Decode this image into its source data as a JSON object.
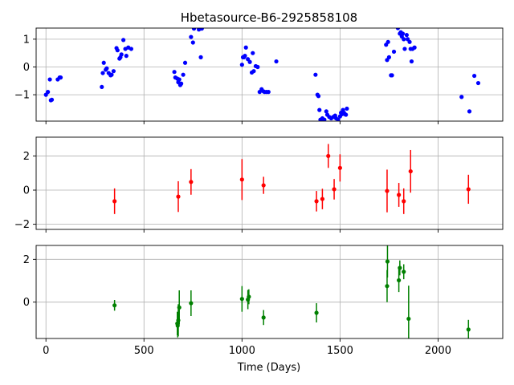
{
  "figure": {
    "title": "Hbetasource-B6-2925858108",
    "xlabel": "Time (Days)"
  },
  "chart_data": [
    {
      "type": "scatter",
      "title": "Hbetasource-B6-2925858108",
      "xlabel": "",
      "ylabel": "",
      "xlim": [
        -50,
        2330
      ],
      "ylim": [
        -1.95,
        1.4
      ],
      "xticks": [
        0,
        500,
        1000,
        1500,
        2000
      ],
      "yticks": [
        -1,
        0,
        1
      ],
      "ytick_labels": [
        "−1",
        "0",
        "1"
      ],
      "grid": true,
      "color": "#0000ff",
      "series": [
        {
          "x": [
            0,
            10,
            20,
            25,
            30,
            60,
            70,
            75,
            285,
            290,
            295,
            305,
            310,
            320,
            330,
            335,
            345,
            360,
            365,
            375,
            380,
            385,
            395,
            405,
            410,
            420,
            435,
            655,
            660,
            670,
            675,
            680,
            685,
            690,
            700,
            710,
            740,
            750,
            755,
            780,
            790,
            795,
            1000,
            1005,
            1010,
            1015,
            1020,
            1030,
            1040,
            1050,
            1055,
            1060,
            1070,
            1080,
            1090,
            1100,
            1110,
            1115,
            1125,
            1135,
            1175,
            1375,
            1385,
            1390,
            1395,
            1400,
            1405,
            1410,
            1415,
            1420,
            1430,
            1435,
            1445,
            1455,
            1465,
            1475,
            1480,
            1490,
            1500,
            1505,
            1510,
            1515,
            1520,
            1525,
            1530,
            1535,
            1735,
            1740,
            1745,
            1750,
            1760,
            1765,
            1775,
            1795,
            1805,
            1810,
            1815,
            1820,
            1825,
            1830,
            1840,
            1845,
            1855,
            1860,
            1865,
            1870,
            1880,
            2120,
            2160,
            2185,
            2205
          ],
          "y": [
            -1.0,
            -0.9,
            -0.45,
            -1.2,
            -1.18,
            -0.45,
            -0.38,
            -0.38,
            -0.72,
            -0.22,
            0.15,
            -0.1,
            -0.05,
            -0.22,
            -0.3,
            -0.28,
            -0.15,
            0.68,
            0.6,
            0.3,
            0.35,
            0.45,
            0.97,
            0.65,
            0.4,
            0.7,
            0.65,
            -0.18,
            -0.38,
            -0.42,
            -0.55,
            -0.45,
            -0.65,
            -0.6,
            -0.28,
            0.15,
            1.08,
            0.88,
            1.38,
            1.35,
            0.35,
            1.38,
            0.08,
            0.35,
            0.35,
            0.4,
            0.7,
            0.28,
            0.18,
            -0.2,
            0.5,
            -0.15,
            0.03,
            0.0,
            -0.9,
            -0.8,
            -0.88,
            -0.9,
            -0.9,
            -0.9,
            0.2,
            -0.28,
            -1.0,
            -1.05,
            -1.55,
            -1.9,
            -1.9,
            -1.85,
            -1.95,
            -1.9,
            -1.6,
            -1.72,
            -1.8,
            -1.85,
            -1.8,
            -1.75,
            -1.85,
            -1.9,
            -1.78,
            -1.65,
            -1.7,
            -1.55,
            -1.65,
            -1.7,
            -1.72,
            -1.5,
            0.8,
            0.25,
            0.9,
            0.35,
            -0.3,
            -0.3,
            0.55,
            1.4,
            1.2,
            1.25,
            1.1,
            1.2,
            1.0,
            0.65,
            1.15,
            1.0,
            0.9,
            0.65,
            0.2,
            0.65,
            0.7,
            -1.08,
            -1.6,
            -0.32,
            -0.58
          ]
        }
      ]
    },
    {
      "type": "scatter",
      "xlabel": "",
      "ylabel": "",
      "xlim": [
        -50,
        2330
      ],
      "ylim": [
        -2.3,
        3.1
      ],
      "xticks": [
        0,
        500,
        1000,
        1500,
        2000
      ],
      "yticks": [
        -2,
        0,
        2
      ],
      "ytick_labels": [
        "−2",
        "0",
        "2"
      ],
      "grid": true,
      "color": "#ff0000",
      "series": [
        {
          "x": [
            350,
            675,
            740,
            1000,
            1110,
            1380,
            1410,
            1440,
            1470,
            1500,
            1740,
            1800,
            1825,
            1860,
            2155
          ],
          "y": [
            -0.65,
            -0.38,
            0.48,
            0.62,
            0.28,
            -0.65,
            -0.52,
            2.0,
            0.05,
            1.3,
            -0.05,
            -0.28,
            -0.65,
            1.1,
            0.05
          ],
          "yerr": [
            0.75,
            0.9,
            0.75,
            1.2,
            0.5,
            0.6,
            0.6,
            0.7,
            0.6,
            0.8,
            1.25,
            0.7,
            0.75,
            1.25,
            0.85
          ]
        }
      ]
    },
    {
      "type": "scatter",
      "xlabel": "Time (Days)",
      "ylabel": "",
      "xlim": [
        -50,
        2330
      ],
      "ylim": [
        -1.7,
        2.65
      ],
      "xticks": [
        0,
        500,
        1000,
        1500,
        2000
      ],
      "xtick_labels": [
        "0",
        "500",
        "1000",
        "1500",
        "2000"
      ],
      "yticks": [
        0,
        2
      ],
      "ytick_labels": [
        "0",
        "2"
      ],
      "grid": true,
      "color": "#008000",
      "series": [
        {
          "x": [
            350,
            670,
            672,
            675,
            680,
            740,
            1000,
            1030,
            1035,
            1110,
            1380,
            1740,
            1742,
            1800,
            1805,
            1825,
            1850,
            2155
          ],
          "y": [
            -0.15,
            -1.0,
            -1.1,
            -0.85,
            -0.25,
            -0.05,
            0.15,
            0.12,
            0.25,
            -0.72,
            -0.5,
            0.75,
            1.9,
            1.02,
            1.6,
            1.42,
            -0.78,
            -1.28
          ],
          "yerr": [
            0.25,
            0.55,
            0.55,
            0.75,
            0.8,
            0.6,
            0.6,
            0.45,
            0.35,
            0.35,
            0.45,
            0.75,
            0.75,
            0.55,
            0.35,
            0.35,
            1.55,
            0.45
          ]
        }
      ]
    }
  ]
}
